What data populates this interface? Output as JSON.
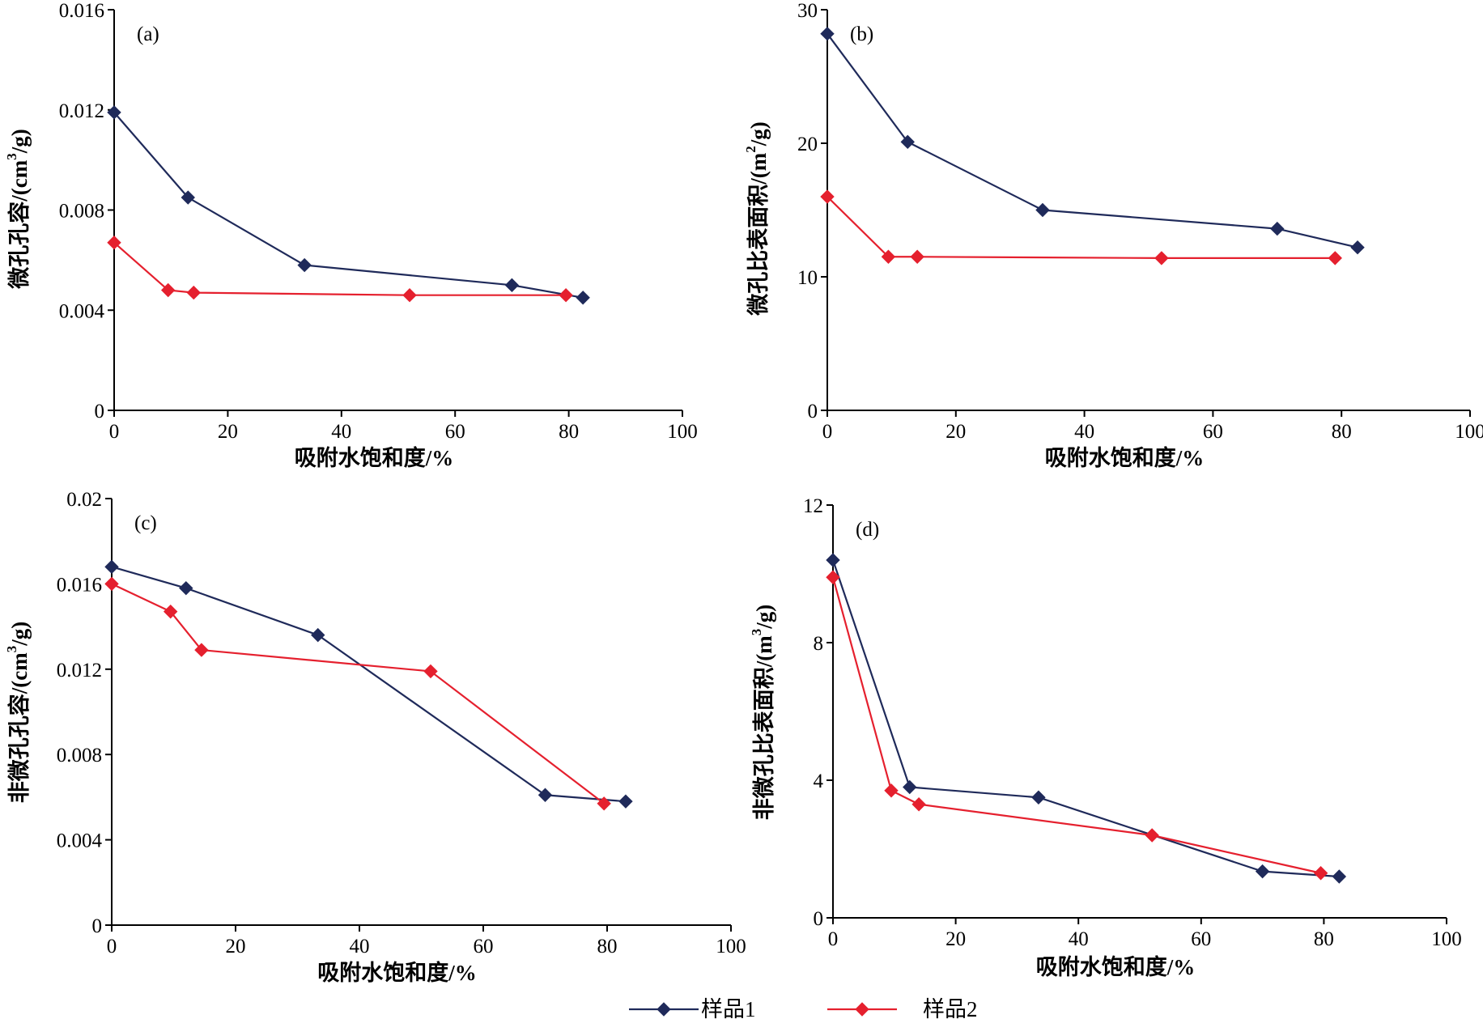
{
  "legend": [
    {
      "name": "样品1",
      "color": "#1f2a5a"
    },
    {
      "name": "样品2",
      "color": "#e5202e"
    }
  ],
  "chart_data": [
    {
      "panel": "(a)",
      "type": "line",
      "xlabel": "吸附水饱和度/%",
      "ylabel_parts": [
        "微孔孔容/(cm",
        "3",
        "/g)"
      ],
      "xlim": [
        0,
        100
      ],
      "ylim": [
        0,
        0.016
      ],
      "xticks": [
        0,
        20,
        40,
        60,
        80,
        100
      ],
      "xtick_labels": [
        "0",
        "20",
        "40",
        "60",
        "80",
        "100"
      ],
      "yticks": [
        0,
        0.004,
        0.008,
        0.012,
        0.016
      ],
      "ytick_labels": [
        "0",
        "0.004",
        "0.008",
        "0.012",
        "0.016"
      ],
      "series": [
        {
          "name": "样品1",
          "x": [
            0,
            13,
            33.5,
            70,
            82.5
          ],
          "y": [
            0.0119,
            0.0085,
            0.0058,
            0.005,
            0.0045
          ]
        },
        {
          "name": "样品2",
          "x": [
            0,
            9.5,
            14,
            52,
            79.5
          ],
          "y": [
            0.0067,
            0.0048,
            0.0047,
            0.0046,
            0.0046
          ]
        }
      ]
    },
    {
      "panel": "(b)",
      "type": "line",
      "xlabel": "吸附水饱和度/%",
      "ylabel_parts": [
        "微孔比表面积/(m",
        "2",
        "/g)"
      ],
      "xlim": [
        0,
        100
      ],
      "ylim": [
        0,
        30
      ],
      "xticks": [
        0,
        20,
        40,
        60,
        80,
        100
      ],
      "xtick_labels": [
        "0",
        "20",
        "40",
        "60",
        "80",
        "100"
      ],
      "yticks": [
        0,
        10,
        20,
        30
      ],
      "ytick_labels": [
        "0",
        "10",
        "20",
        "30"
      ],
      "series": [
        {
          "name": "样品1",
          "x": [
            0,
            12.5,
            33.5,
            70,
            82.5
          ],
          "y": [
            28.2,
            20.1,
            15,
            13.6,
            12.2
          ]
        },
        {
          "name": "样品2",
          "x": [
            0,
            9.5,
            14,
            52,
            79
          ],
          "y": [
            16,
            11.5,
            11.5,
            11.4,
            11.4
          ]
        }
      ]
    },
    {
      "panel": "(c)",
      "type": "line",
      "xlabel": "吸附水饱和度/%",
      "ylabel_parts": [
        "非微孔孔容/(cm",
        "3",
        "/g)"
      ],
      "xlim": [
        0,
        100
      ],
      "ylim": [
        0,
        0.02
      ],
      "xticks": [
        0,
        20,
        40,
        60,
        80,
        100
      ],
      "xtick_labels": [
        "0",
        "20",
        "40",
        "60",
        "80",
        "100"
      ],
      "yticks": [
        0,
        0.004,
        0.008,
        0.012,
        0.016,
        0.02
      ],
      "ytick_labels": [
        "0",
        "0.004",
        "0.008",
        "0.012",
        "0.016",
        "0.02"
      ],
      "series": [
        {
          "name": "样品1",
          "x": [
            0,
            12,
            33.3,
            70,
            83
          ],
          "y": [
            0.0168,
            0.0158,
            0.0136,
            0.0061,
            0.0058
          ]
        },
        {
          "name": "样品2",
          "x": [
            0,
            9.5,
            14.5,
            51.5,
            79.5
          ],
          "y": [
            0.016,
            0.0147,
            0.0129,
            0.0119,
            0.0057
          ]
        }
      ]
    },
    {
      "panel": "(d)",
      "type": "line",
      "xlabel": "吸附水饱和度/%",
      "ylabel_parts": [
        "非微孔比表面积/(m",
        "3",
        "/g)"
      ],
      "xlim": [
        0,
        100
      ],
      "ylim": [
        0,
        12
      ],
      "xticks": [
        0,
        20,
        40,
        60,
        80,
        100
      ],
      "xtick_labels": [
        "0",
        "20",
        "40",
        "60",
        "80",
        "100"
      ],
      "yticks": [
        0,
        4,
        8,
        12
      ],
      "ytick_labels": [
        "0",
        "4",
        "8",
        "12"
      ],
      "series": [
        {
          "name": "样品1",
          "x": [
            0,
            12.5,
            33.5,
            70,
            82.5
          ],
          "y": [
            10.4,
            3.8,
            3.5,
            1.35,
            1.2
          ]
        },
        {
          "name": "样品2",
          "x": [
            0,
            9.5,
            14,
            52,
            79.5
          ],
          "y": [
            9.9,
            3.7,
            3.3,
            2.4,
            1.3
          ]
        }
      ]
    }
  ]
}
